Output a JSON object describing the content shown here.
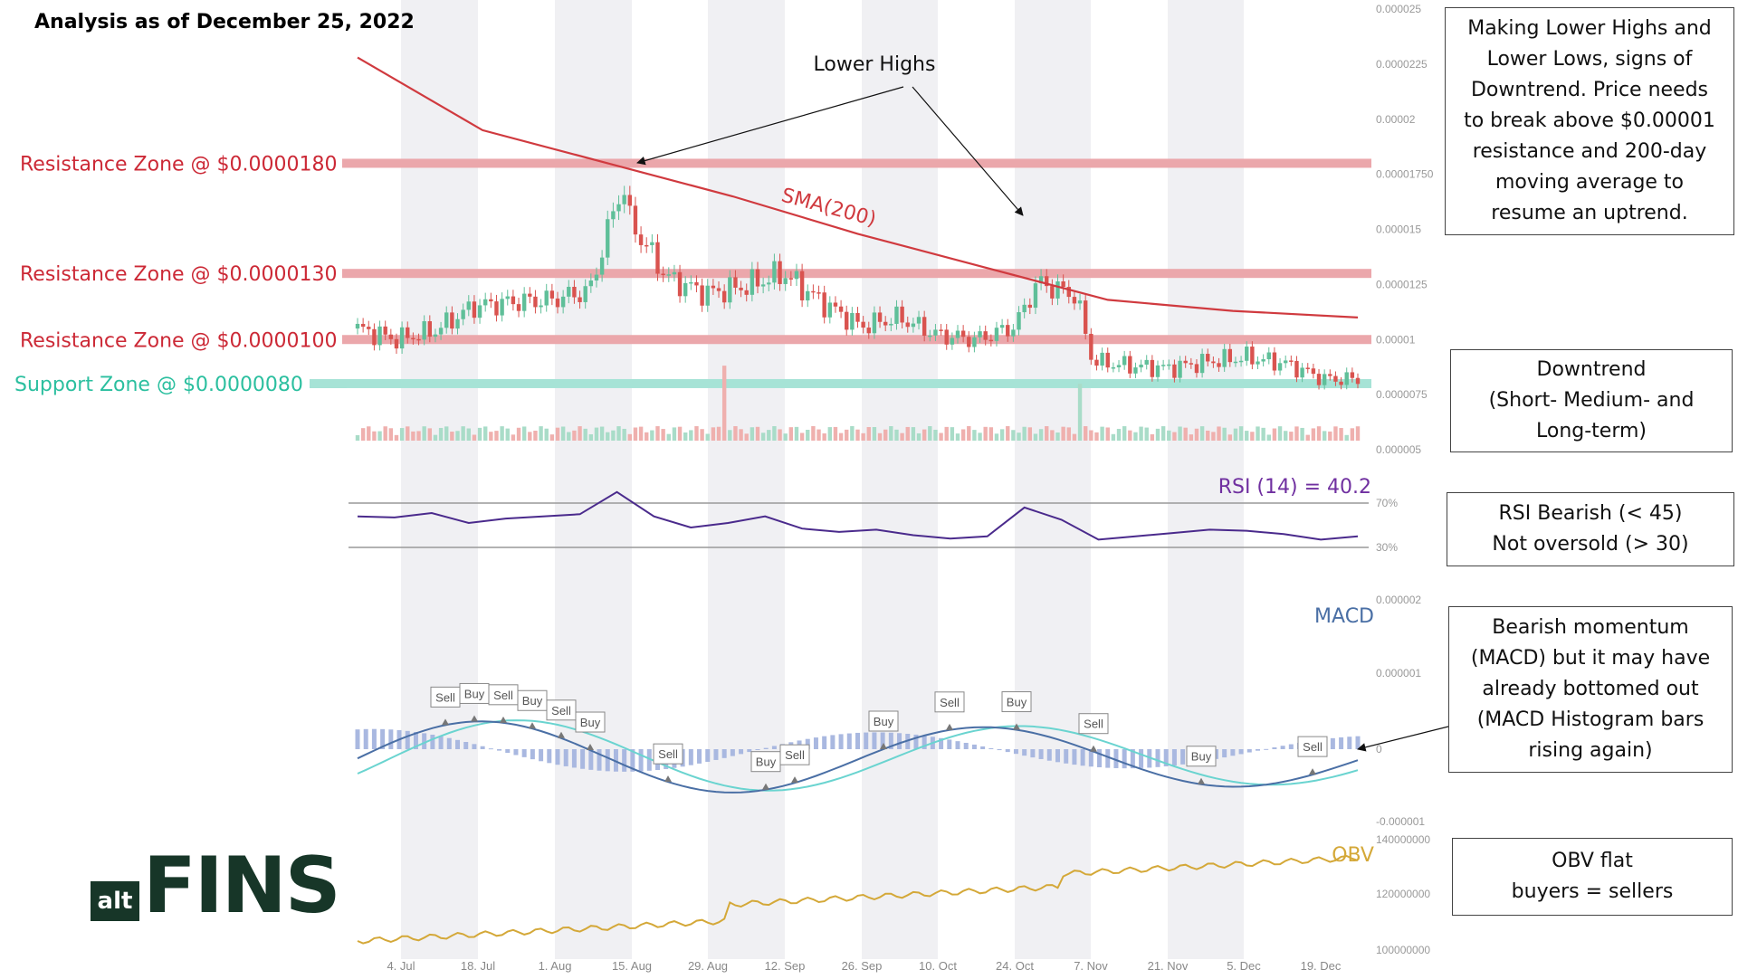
{
  "page": {
    "title": "Analysis as of December 25, 2022",
    "logo": {
      "prefix": "alt",
      "name": "FINS"
    }
  },
  "annotations": {
    "lower_highs": "Lower Highs",
    "sma_label": "SMA(200)",
    "rsi_label": "RSI (14) = 40.2",
    "macd_label": "MACD",
    "obv_label": "OBV"
  },
  "zones": [
    {
      "label": "Resistance Zone @ $0.0000180",
      "value": 1.8e-05,
      "kind": "resistance"
    },
    {
      "label": "Resistance Zone @ $0.0000130",
      "value": 1.3e-05,
      "kind": "resistance"
    },
    {
      "label": "Resistance Zone @ $0.0000100",
      "value": 1e-05,
      "kind": "resistance"
    },
    {
      "label": "Support Zone @ $0.0000080",
      "value": 8e-06,
      "kind": "support"
    }
  ],
  "boxes": [
    {
      "text": "Making Lower Highs and\nLower Lows, signs of\nDowntrend. Price needs\nto break above $0.00001\nresistance and 200-day\nmoving average to\nresume an uptrend."
    },
    {
      "text": "Downtrend\n(Short- Medium- and\nLong-term)"
    },
    {
      "text": "RSI Bearish (< 45)\nNot oversold (> 30)"
    },
    {
      "text": "Bearish momentum\n(MACD) but it may have\nalready bottomed out\n(MACD Histogram bars\nrising again)"
    },
    {
      "text": "OBV flat\nbuyers = sellers"
    }
  ],
  "colors": {
    "resistance": "#cc2936",
    "resistance_band": "#eba7ab",
    "support": "#2bbf9f",
    "support_band": "#a6e3d6",
    "sma": "#d03a3f",
    "rsi": "#4a2a8c",
    "rsi_label": "#7030a0",
    "macd_line": "#4a6fa5",
    "macd_signal": "#6ad4d0",
    "macd_hist": "#a9b8e0",
    "obv": "#d4a838",
    "up": "#5fbf99",
    "down": "#d9534f",
    "band": "#f0f0f3",
    "logo": "#173628"
  },
  "chart_data": {
    "type": "candlestick",
    "x_ticks": [
      "4. Jul",
      "18. Jul",
      "1. Aug",
      "15. Aug",
      "29. Aug",
      "12. Sep",
      "26. Sep",
      "10. Oct",
      "24. Oct",
      "7. Nov",
      "21. Nov",
      "5. Dec",
      "19. Dec"
    ],
    "price_axis": {
      "ticks": [
        "0.000025",
        "0.0000225",
        "0.00002",
        "0.00001750",
        "0.000015",
        "0.0000125",
        "0.00001",
        "0.0000075",
        "0.000005"
      ],
      "range": [
        5e-06,
        2.5e-05
      ]
    },
    "price": [
      {
        "date": "2022-06-27",
        "close": 1.05e-05
      },
      {
        "date": "2022-07-04",
        "close": 1e-05
      },
      {
        "date": "2022-07-11",
        "close": 1.04e-05
      },
      {
        "date": "2022-07-18",
        "close": 1.15e-05
      },
      {
        "date": "2022-07-25",
        "close": 1.17e-05
      },
      {
        "date": "2022-08-01",
        "close": 1.18e-05
      },
      {
        "date": "2022-08-08",
        "close": 1.22e-05
      },
      {
        "date": "2022-08-14",
        "close": 1.72e-05
      },
      {
        "date": "2022-08-15",
        "close": 1.55e-05
      },
      {
        "date": "2022-08-22",
        "close": 1.28e-05
      },
      {
        "date": "2022-08-29",
        "close": 1.21e-05
      },
      {
        "date": "2022-09-05",
        "close": 1.24e-05
      },
      {
        "date": "2022-09-12",
        "close": 1.3e-05
      },
      {
        "date": "2022-09-19",
        "close": 1.17e-05
      },
      {
        "date": "2022-09-26",
        "close": 1.06e-05
      },
      {
        "date": "2022-10-03",
        "close": 1.1e-05
      },
      {
        "date": "2022-10-10",
        "close": 1.02e-05
      },
      {
        "date": "2022-10-17",
        "close": 1e-05
      },
      {
        "date": "2022-10-24",
        "close": 1.06e-05
      },
      {
        "date": "2022-10-28",
        "close": 1.26e-05
      },
      {
        "date": "2022-11-04",
        "close": 1.2e-05
      },
      {
        "date": "2022-11-07",
        "close": 9e-06
      },
      {
        "date": "2022-11-14",
        "close": 8.8e-06
      },
      {
        "date": "2022-11-21",
        "close": 8.7e-06
      },
      {
        "date": "2022-11-28",
        "close": 9e-06
      },
      {
        "date": "2022-12-05",
        "close": 9.2e-06
      },
      {
        "date": "2022-12-12",
        "close": 8.9e-06
      },
      {
        "date": "2022-12-19",
        "close": 8.2e-06
      },
      {
        "date": "2022-12-25",
        "close": 8.2e-06
      }
    ],
    "sma200": [
      2.28e-05,
      1.95e-05,
      1.8e-05,
      1.65e-05,
      1.48e-05,
      1.33e-05,
      1.18e-05,
      1.13e-05,
      1.1e-05
    ],
    "rsi": {
      "value": 40.2,
      "levels": [
        "70%",
        "30%"
      ],
      "series": [
        58,
        57,
        61,
        52,
        56,
        58,
        60,
        80,
        58,
        48,
        52,
        58,
        47,
        44,
        46,
        41,
        38,
        40,
        66,
        55,
        37,
        40,
        43,
        46,
        45,
        42,
        37,
        40
      ]
    },
    "macd": {
      "axis_ticks": [
        "0.000002",
        "0.000001",
        "0",
        "-0.000001"
      ],
      "signals": [
        {
          "label": "Sell"
        },
        {
          "label": "Buy"
        },
        {
          "label": "Sell"
        },
        {
          "label": "Buy"
        },
        {
          "label": "Sell"
        },
        {
          "label": "Buy"
        },
        {
          "label": "Sell"
        },
        {
          "label": "Buy"
        },
        {
          "label": "Sell"
        },
        {
          "label": "Buy"
        },
        {
          "label": "Sell"
        },
        {
          "label": "Buy"
        },
        {
          "label": "Sell"
        },
        {
          "label": "Buy"
        },
        {
          "label": "Sell"
        }
      ]
    },
    "obv": {
      "axis_ticks": [
        "140000000",
        "120000000",
        "100000000"
      ]
    }
  }
}
